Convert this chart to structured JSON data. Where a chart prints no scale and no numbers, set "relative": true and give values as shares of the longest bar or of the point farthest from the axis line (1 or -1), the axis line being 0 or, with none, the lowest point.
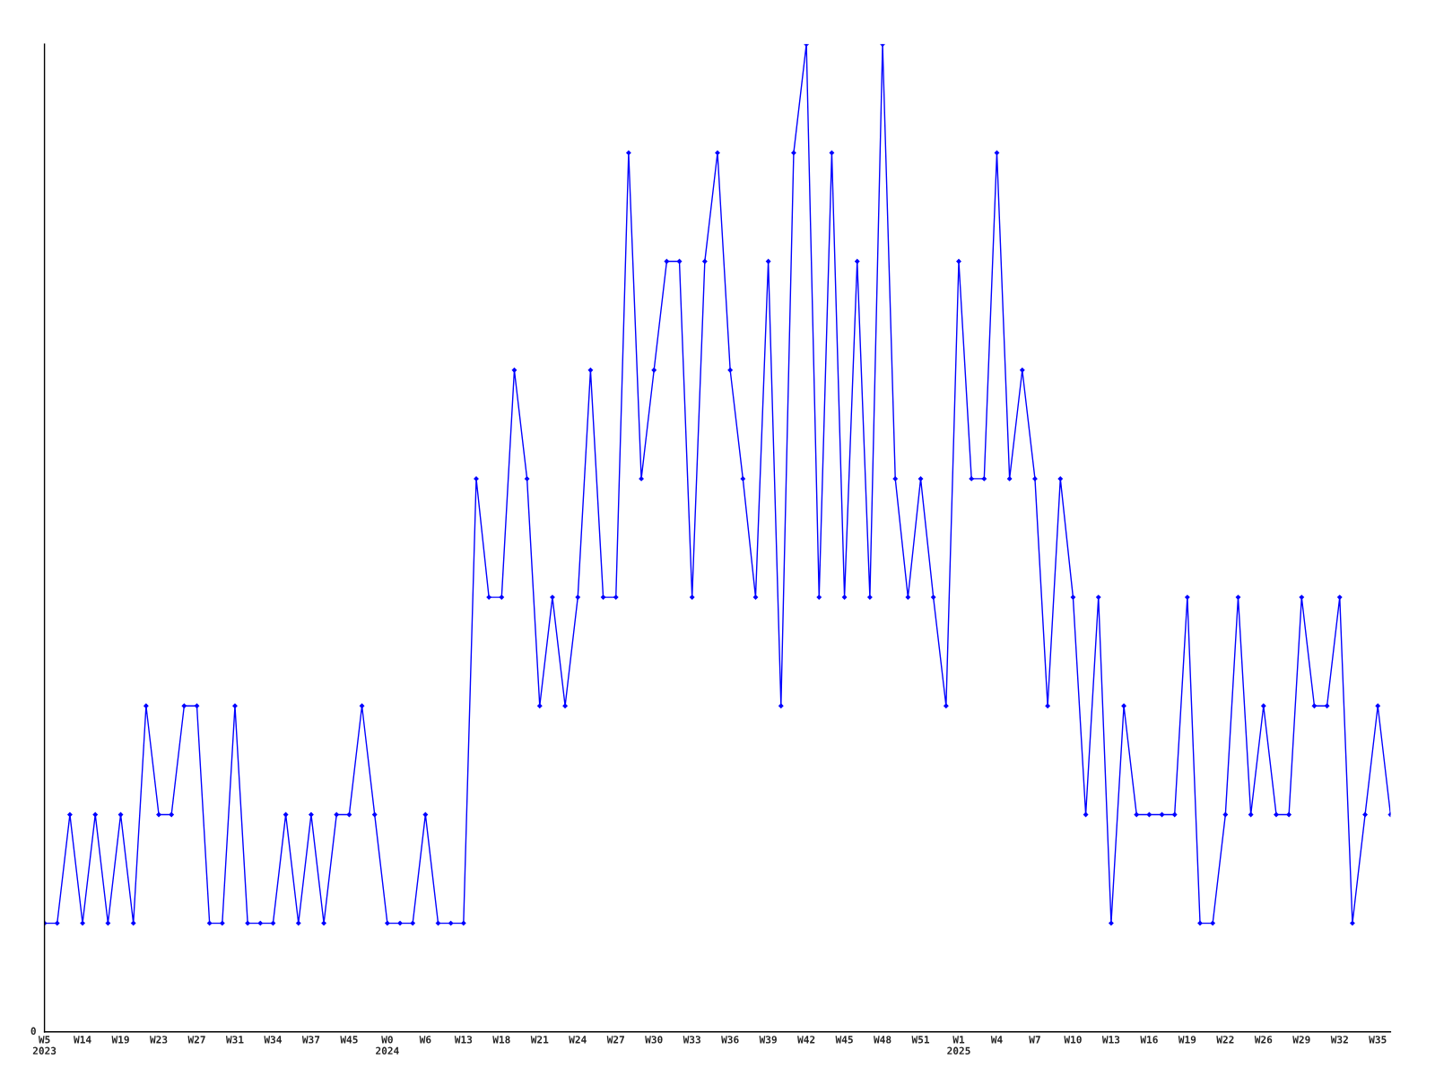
{
  "chart_data": {
    "type": "line",
    "relative": true,
    "marker": "diamond",
    "line_style": "solid",
    "annotations": [
      "0"
    ],
    "categories": [
      "W5\n2023",
      null,
      null,
      "W14",
      null,
      null,
      "W19",
      null,
      null,
      "W23",
      null,
      null,
      "W27",
      null,
      null,
      "W31",
      null,
      null,
      "W34",
      null,
      null,
      "W37",
      null,
      null,
      "W45",
      null,
      null,
      "W0\n2024",
      null,
      null,
      "W6",
      null,
      null,
      "W13",
      null,
      null,
      "W18",
      null,
      null,
      "W21",
      null,
      null,
      "W24",
      null,
      null,
      "W27",
      null,
      null,
      "W30",
      null,
      null,
      "W33",
      null,
      null,
      "W36",
      null,
      null,
      "W39",
      null,
      null,
      "W42",
      null,
      null,
      "W45",
      null,
      null,
      "W48",
      null,
      null,
      "W51",
      null,
      null,
      "W1\n2025",
      null,
      null,
      "W4",
      null,
      null,
      "W7",
      null,
      null,
      "W10",
      null,
      null,
      "W13",
      null,
      null,
      "W16",
      null,
      null,
      "W19",
      null,
      null,
      "W22",
      null,
      null,
      "W26",
      null,
      null,
      "W29",
      null,
      null,
      "W32",
      null,
      null,
      "W35",
      null
    ],
    "series": [
      {
        "color": "#0000ff",
        "values": [
          0.11,
          0.11,
          0.22,
          0.11,
          0.22,
          0.11,
          0.22,
          0.11,
          0.33,
          0.22,
          0.22,
          0.33,
          0.33,
          0.11,
          0.11,
          0.33,
          0.11,
          0.11,
          0.11,
          0.22,
          0.11,
          0.22,
          0.11,
          0.22,
          0.22,
          0.33,
          0.22,
          0.11,
          0.11,
          0.11,
          0.22,
          0.11,
          0.11,
          0.11,
          0.56,
          0.44,
          0.44,
          0.67,
          0.56,
          0.33,
          0.44,
          0.33,
          0.44,
          0.67,
          0.44,
          0.44,
          0.89,
          0.56,
          0.67,
          0.78,
          0.78,
          0.44,
          0.78,
          0.89,
          0.67,
          0.56,
          0.44,
          0.78,
          0.33,
          0.89,
          1,
          0.44,
          0.89,
          0.44,
          0.78,
          0.44,
          1,
          0.56,
          0.44,
          0.56,
          0.44,
          0.33,
          0.78,
          0.56,
          0.56,
          0.89,
          0.56,
          0.67,
          0.56,
          0.33,
          0.56,
          0.44,
          0.22,
          0.44,
          0.11,
          0.33,
          0.22,
          0.22,
          0.22,
          0.22,
          0.44,
          0.11,
          0.11,
          0.22,
          0.44,
          0.22,
          0.33,
          0.22,
          0.22,
          0.44,
          0.33,
          0.33,
          0.44,
          0.11,
          0.22,
          0.33,
          0.22
        ]
      }
    ]
  }
}
